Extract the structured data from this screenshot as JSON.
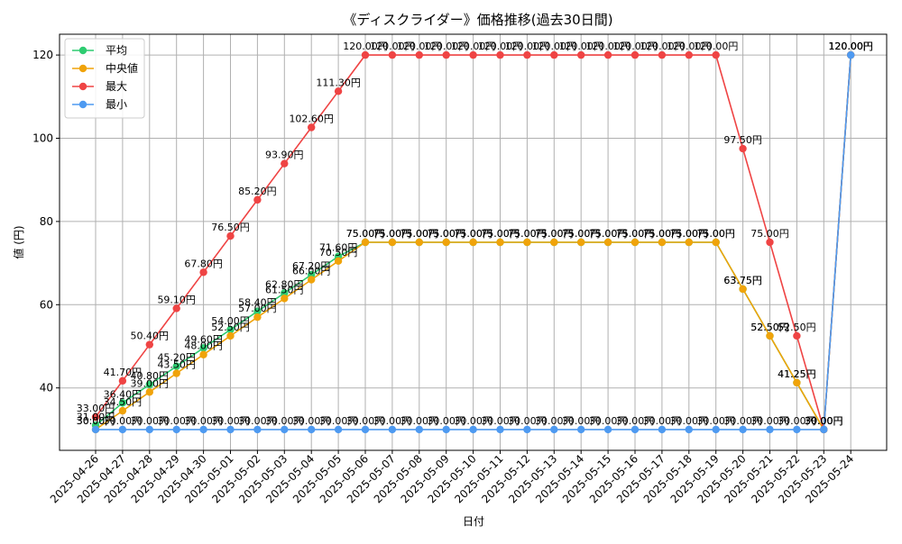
{
  "chart_data": {
    "type": "line",
    "title": "《ディスクライダー》価格推移(過去30日間)",
    "xlabel": "日付",
    "ylabel": "値 (円)",
    "ylim": [
      25,
      125
    ],
    "yticks": [
      40,
      60,
      80,
      100,
      120
    ],
    "grid": true,
    "legend_position": "top-left",
    "value_suffix": "円",
    "categories": [
      "2025-04-26",
      "2025-04-27",
      "2025-04-28",
      "2025-04-29",
      "2025-04-30",
      "2025-05-01",
      "2025-05-02",
      "2025-05-03",
      "2025-05-04",
      "2025-05-05",
      "2025-05-06",
      "2025-05-07",
      "2025-05-08",
      "2025-05-09",
      "2025-05-10",
      "2025-05-11",
      "2025-05-12",
      "2025-05-13",
      "2025-05-14",
      "2025-05-15",
      "2025-05-16",
      "2025-05-17",
      "2025-05-18",
      "2025-05-19",
      "2025-05-20",
      "2025-05-21",
      "2025-05-22",
      "2025-05-23",
      "2025-05-24"
    ],
    "series": [
      {
        "name": "平均",
        "color": "#2ecc71",
        "values": [
          31.0,
          36.4,
          40.8,
          45.2,
          49.6,
          54.0,
          58.4,
          62.8,
          67.2,
          71.6,
          75.0,
          75.0,
          75.0,
          75.0,
          75.0,
          75.0,
          75.0,
          75.0,
          75.0,
          75.0,
          75.0,
          75.0,
          75.0,
          75.0,
          63.75,
          52.5,
          41.25,
          30.0,
          120.0
        ]
      },
      {
        "name": "中央値",
        "color": "#f0a30a",
        "values": [
          30.0,
          34.5,
          39.0,
          43.5,
          48.0,
          52.5,
          57.0,
          61.5,
          66.0,
          70.5,
          75.0,
          75.0,
          75.0,
          75.0,
          75.0,
          75.0,
          75.0,
          75.0,
          75.0,
          75.0,
          75.0,
          75.0,
          75.0,
          75.0,
          63.75,
          52.5,
          41.25,
          30.0,
          120.0
        ]
      },
      {
        "name": "最大",
        "color": "#ef4444",
        "values": [
          33.0,
          41.7,
          50.4,
          59.1,
          67.8,
          76.5,
          85.2,
          93.9,
          102.6,
          111.3,
          120.0,
          120.0,
          120.0,
          120.0,
          120.0,
          120.0,
          120.0,
          120.0,
          120.0,
          120.0,
          120.0,
          120.0,
          120.0,
          120.0,
          97.5,
          75.0,
          52.5,
          30.0,
          120.0
        ]
      },
      {
        "name": "最小",
        "color": "#4e9af1",
        "values": [
          30.0,
          30.0,
          30.0,
          30.0,
          30.0,
          30.0,
          30.0,
          30.0,
          30.0,
          30.0,
          30.0,
          30.0,
          30.0,
          30.0,
          30.0,
          30.0,
          30.0,
          30.0,
          30.0,
          30.0,
          30.0,
          30.0,
          30.0,
          30.0,
          30.0,
          30.0,
          30.0,
          30.0,
          120.0
        ]
      }
    ]
  }
}
